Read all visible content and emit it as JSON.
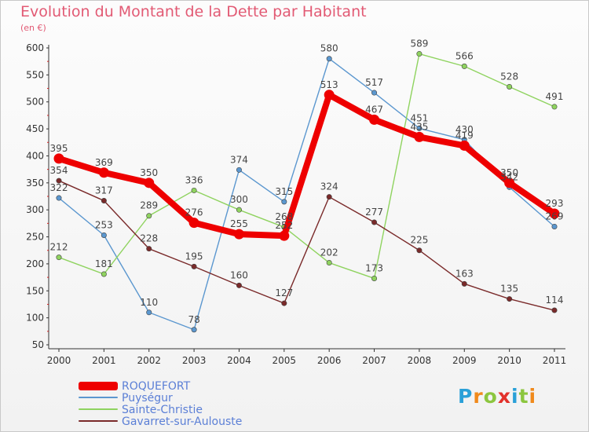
{
  "title": "Evolution du Montant de la Dette par Habitant",
  "subtitle": "(en €)",
  "logo": {
    "text": "Proxiti",
    "letters": [
      "P",
      "r",
      "o",
      "x",
      "i",
      "t",
      "i"
    ],
    "colors": [
      "#2aa0d8",
      "#f08a1c",
      "#8cc63f",
      "#e2312b",
      "#2aa0d8",
      "#8cc63f",
      "#f08a1c"
    ]
  },
  "chart_data": {
    "type": "line",
    "title": "Evolution du Montant de la Dette par Habitant",
    "ylabel": "(en €)",
    "xlabel": "",
    "categories": [
      "2000",
      "2001",
      "2002",
      "2003",
      "2004",
      "2005",
      "2006",
      "2007",
      "2008",
      "2009",
      "2010",
      "2011"
    ],
    "ylim": [
      50,
      600
    ],
    "yticks": [
      50,
      100,
      150,
      200,
      250,
      300,
      350,
      400,
      450,
      500,
      550,
      600
    ],
    "grid": false,
    "legend_position": "bottom-left",
    "series": [
      {
        "name": "ROQUEFORT",
        "color": "#ee0000",
        "values": [
          395,
          369,
          350,
          276,
          255,
          252,
          513,
          467,
          435,
          419,
          350,
          293
        ]
      },
      {
        "name": "Puységur",
        "color": "#5b97cf",
        "values": [
          322,
          253,
          110,
          78,
          374,
          315,
          580,
          517,
          451,
          430,
          342,
          269
        ]
      },
      {
        "name": "Sainte-Christie",
        "color": "#8fd35f",
        "values": [
          212,
          181,
          289,
          336,
          300,
          268,
          202,
          173,
          589,
          566,
          528,
          491
        ]
      },
      {
        "name": "Gavarret-sur-Aulouste",
        "color": "#7a2a2a",
        "values": [
          354,
          317,
          228,
          195,
          160,
          127,
          324,
          277,
          225,
          163,
          135,
          114
        ]
      }
    ],
    "data_labels": [
      {
        "series": 0,
        "values": [
          "395",
          "369",
          "350",
          "276",
          "255",
          "252",
          "513",
          "467",
          "435",
          "419",
          "350",
          "293"
        ]
      },
      {
        "series": 1,
        "values": [
          "322",
          "253",
          "110",
          "78",
          "374",
          "315",
          "580",
          "517",
          "451",
          "430",
          "342",
          "269"
        ]
      },
      {
        "series": 2,
        "values": [
          "212",
          "181",
          "289",
          "336",
          "300",
          "268",
          "202",
          "173",
          "589",
          "566",
          "528",
          "491"
        ]
      },
      {
        "series": 3,
        "values": [
          "354",
          "317",
          "228",
          "195",
          "160",
          "127",
          "324",
          "277",
          "225",
          "163",
          "135",
          "114"
        ]
      }
    ]
  }
}
